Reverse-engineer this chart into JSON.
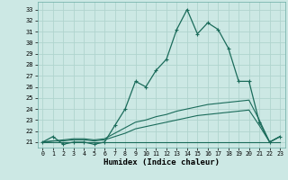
{
  "title": "",
  "xlabel": "Humidex (Indice chaleur)",
  "bg_color": "#cce8e4",
  "grid_color": "#b0d4ce",
  "line_color": "#1a6b5a",
  "x_hours": [
    0,
    1,
    2,
    3,
    4,
    5,
    6,
    7,
    8,
    9,
    10,
    11,
    12,
    13,
    14,
    15,
    16,
    17,
    18,
    19,
    20,
    21,
    22,
    23
  ],
  "main_series": [
    21.0,
    21.5,
    20.8,
    21.0,
    21.0,
    20.8,
    21.0,
    22.5,
    24.0,
    26.5,
    26.0,
    27.5,
    28.5,
    31.2,
    33.0,
    30.8,
    31.8,
    31.2,
    29.5,
    26.5,
    26.5,
    22.8,
    21.0,
    21.5
  ],
  "flat_series": [
    21.0,
    21.0,
    21.0,
    21.0,
    21.0,
    21.0,
    21.0,
    21.0,
    21.0,
    21.0,
    21.0,
    21.0,
    21.0,
    21.0,
    21.0,
    21.0,
    21.0,
    21.0,
    21.0,
    21.0,
    21.0,
    21.0,
    21.0,
    21.0
  ],
  "diag_series1": [
    21.0,
    21.1,
    21.2,
    21.3,
    21.3,
    21.2,
    21.3,
    21.8,
    22.3,
    22.8,
    23.0,
    23.3,
    23.5,
    23.8,
    24.0,
    24.2,
    24.4,
    24.5,
    24.6,
    24.7,
    24.8,
    23.0,
    21.0,
    21.5
  ],
  "diag_series2": [
    21.0,
    21.1,
    21.1,
    21.2,
    21.2,
    21.1,
    21.2,
    21.5,
    21.8,
    22.2,
    22.4,
    22.6,
    22.8,
    23.0,
    23.2,
    23.4,
    23.5,
    23.6,
    23.7,
    23.8,
    23.9,
    22.5,
    21.0,
    21.5
  ],
  "ylim_low": 20.5,
  "ylim_high": 33.7,
  "yticks": [
    21,
    22,
    23,
    24,
    25,
    26,
    27,
    28,
    29,
    30,
    31,
    32,
    33
  ]
}
